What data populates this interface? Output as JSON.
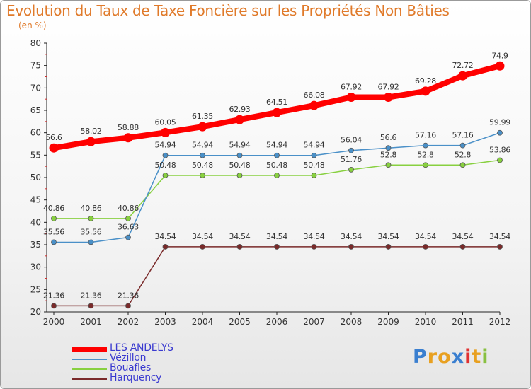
{
  "chart_data": {
    "type": "line",
    "title": "Evolution du Taux de Taxe Foncière sur les Propriétés Non Bâties",
    "subtitle": "(en %)",
    "xlabel": "",
    "ylabel": "",
    "x": [
      "2000",
      "2001",
      "2002",
      "2003",
      "2004",
      "2005",
      "2006",
      "2007",
      "2008",
      "2009",
      "2010",
      "2011",
      "2012"
    ],
    "ylim": [
      20,
      80
    ],
    "yticks": [
      20,
      25,
      30,
      35,
      40,
      45,
      50,
      55,
      60,
      65,
      70,
      75,
      80
    ],
    "grid": false,
    "legend_position": "bottom-left",
    "series": [
      {
        "name": "LES ANDELYS",
        "color": "#ff0000",
        "values": [
          56.6,
          58.02,
          58.88,
          60.05,
          61.35,
          62.93,
          64.51,
          66.08,
          67.92,
          67.92,
          69.28,
          72.72,
          74.9
        ],
        "labels": [
          "56.6",
          "58.02",
          "58.88",
          "60.05",
          "61.35",
          "62.93",
          "64.51",
          "66.08",
          "67.92",
          "67.92",
          "69.28",
          "72.72",
          "74.9"
        ]
      },
      {
        "name": "Vézillon",
        "color": "#4a90c8",
        "values": [
          35.56,
          35.56,
          36.63,
          54.94,
          54.94,
          54.94,
          54.94,
          54.94,
          56.04,
          56.6,
          57.16,
          57.16,
          59.99
        ],
        "labels": [
          "35.56",
          "35.56",
          "36.63",
          "54.94",
          "54.94",
          "54.94",
          "54.94",
          "54.94",
          "56.04",
          "56.6",
          "57.16",
          "57.16",
          "59.99"
        ]
      },
      {
        "name": "Bouafles",
        "color": "#88d040",
        "values": [
          40.86,
          40.86,
          40.86,
          50.48,
          50.48,
          50.48,
          50.48,
          50.48,
          51.76,
          52.8,
          52.8,
          52.8,
          53.86
        ],
        "labels": [
          "40.86",
          "40.86",
          "40.86",
          "50.48",
          "50.48",
          "50.48",
          "50.48",
          "50.48",
          "51.76",
          "52.8",
          "52.8",
          "52.8",
          "53.86"
        ]
      },
      {
        "name": "Harquency",
        "color": "#7a2a2a",
        "values": [
          21.36,
          21.36,
          21.36,
          34.54,
          34.54,
          34.54,
          34.54,
          34.54,
          34.54,
          34.54,
          34.54,
          34.54,
          34.54
        ],
        "labels": [
          "21.36",
          "21.36",
          "21.36",
          "34.54",
          "34.54",
          "34.54",
          "34.54",
          "34.54",
          "34.54",
          "34.54",
          "34.54",
          "34.54",
          "34.54"
        ]
      }
    ]
  },
  "logo": {
    "letters": [
      "P",
      "r",
      "o",
      "x",
      "i",
      "t",
      "i"
    ],
    "colors": [
      "#3a7fd0",
      "#e8a020",
      "#e8a020",
      "#3a7fd0",
      "#e03030",
      "#e8a020",
      "#88c040"
    ]
  }
}
